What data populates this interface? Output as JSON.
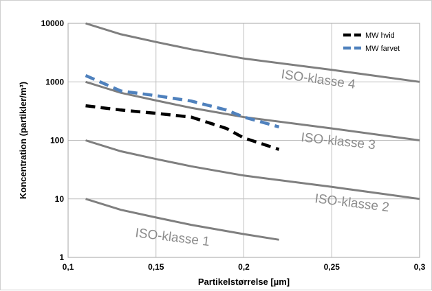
{
  "chart_data": {
    "type": "line",
    "title": "",
    "xlabel": "Partikelstørrelse [µm]",
    "ylabel": "Koncentration (partikler/m³)",
    "xlim": [
      0.1,
      0.3
    ],
    "ylim": [
      1,
      10000
    ],
    "yscale": "log",
    "grid": true,
    "x_ticks": [
      "0,1",
      "0,15",
      "0,2",
      "0,25",
      "0,3"
    ],
    "y_ticks": [
      "1",
      "10",
      "100",
      "1000",
      "10000"
    ],
    "legend_position": "top-right",
    "iso_classes": [
      {
        "label": "ISO-klasse 4",
        "x": [
          0.11,
          0.13,
          0.15,
          0.17,
          0.2,
          0.25,
          0.3
        ],
        "y": [
          10000,
          6500,
          4800,
          3600,
          2500,
          1600,
          1000
        ]
      },
      {
        "label": "ISO-klasse 3",
        "x": [
          0.11,
          0.13,
          0.15,
          0.17,
          0.2,
          0.25,
          0.3
        ],
        "y": [
          1000,
          650,
          480,
          360,
          250,
          160,
          100
        ]
      },
      {
        "label": "ISO-klasse 2",
        "x": [
          0.11,
          0.13,
          0.15,
          0.17,
          0.2,
          0.25,
          0.3
        ],
        "y": [
          100,
          65,
          48,
          36,
          25,
          16,
          10
        ]
      },
      {
        "label": "ISO-klasse 1",
        "x": [
          0.11,
          0.13,
          0.15,
          0.17,
          0.2,
          0.22
        ],
        "y": [
          10,
          6.5,
          4.8,
          3.6,
          2.5,
          2.0
        ]
      }
    ],
    "series": [
      {
        "name": "MW hvid",
        "color": "#000000",
        "x": [
          0.11,
          0.13,
          0.15,
          0.17,
          0.19,
          0.2,
          0.22
        ],
        "y": [
          390,
          330,
          290,
          250,
          160,
          110,
          70
        ]
      },
      {
        "name": "MW farvet",
        "color": "#4f81bd",
        "x": [
          0.11,
          0.13,
          0.15,
          0.17,
          0.19,
          0.2,
          0.22
        ],
        "y": [
          1280,
          700,
          580,
          470,
          330,
          250,
          170
        ]
      }
    ],
    "iso_line_color": "#7f7f7f",
    "iso_label_color": "#8c8c8c"
  }
}
